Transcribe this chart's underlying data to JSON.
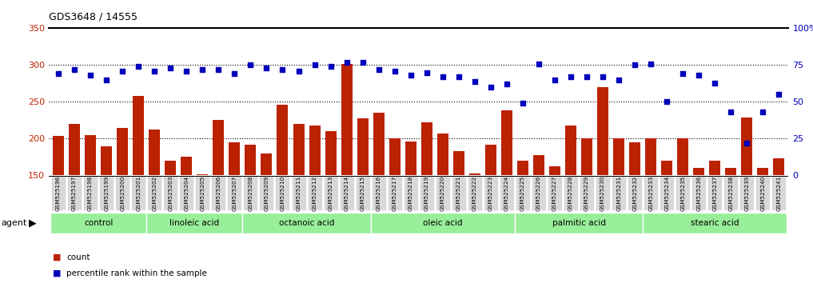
{
  "title": "GDS3648 / 14555",
  "samples": [
    "GSM525196",
    "GSM525197",
    "GSM525198",
    "GSM525199",
    "GSM525200",
    "GSM525201",
    "GSM525202",
    "GSM525203",
    "GSM525204",
    "GSM525205",
    "GSM525206",
    "GSM525207",
    "GSM525208",
    "GSM525209",
    "GSM525210",
    "GSM525211",
    "GSM525212",
    "GSM525213",
    "GSM525214",
    "GSM525215",
    "GSM525216",
    "GSM525217",
    "GSM525218",
    "GSM525219",
    "GSM525220",
    "GSM525221",
    "GSM525222",
    "GSM525223",
    "GSM525224",
    "GSM525225",
    "GSM525226",
    "GSM525227",
    "GSM525228",
    "GSM525229",
    "GSM525230",
    "GSM525231",
    "GSM525232",
    "GSM525233",
    "GSM525234",
    "GSM525235",
    "GSM525236",
    "GSM525237",
    "GSM525238",
    "GSM525239",
    "GSM525240",
    "GSM525241"
  ],
  "bar_values": [
    204,
    220,
    205,
    190,
    215,
    258,
    212,
    170,
    175,
    152,
    225,
    195,
    192,
    180,
    246,
    220,
    218,
    210,
    302,
    228,
    235,
    200,
    196,
    222,
    207,
    183,
    153,
    192,
    238,
    170,
    178,
    163,
    218,
    200,
    270,
    200,
    195,
    200,
    170,
    200,
    160,
    170,
    160,
    229,
    160,
    173
  ],
  "pct_values": [
    69,
    72,
    68,
    65,
    71,
    74,
    71,
    73,
    71,
    72,
    72,
    69,
    75,
    73,
    72,
    71,
    75,
    74,
    77,
    77,
    72,
    71,
    68,
    70,
    67,
    67,
    64,
    60,
    62,
    49,
    76,
    65,
    67,
    67,
    67,
    65,
    75,
    76,
    50,
    69,
    68,
    63,
    43,
    22,
    43,
    55
  ],
  "groups": [
    {
      "label": "control",
      "start": 0,
      "end": 6
    },
    {
      "label": "linoleic acid",
      "start": 6,
      "end": 12
    },
    {
      "label": "octanoic acid",
      "start": 12,
      "end": 20
    },
    {
      "label": "oleic acid",
      "start": 20,
      "end": 29
    },
    {
      "label": "palmitic acid",
      "start": 29,
      "end": 37
    },
    {
      "label": "stearic acid",
      "start": 37,
      "end": 46
    }
  ],
  "bar_color": "#bb2200",
  "dot_color": "#0000bb",
  "ylim_left": [
    150,
    350
  ],
  "ylim_right": [
    0,
    100
  ],
  "yticks_left": [
    150,
    200,
    250,
    300,
    350
  ],
  "yticks_right": [
    0,
    25,
    50,
    75,
    100
  ],
  "hlines": [
    200,
    250,
    300
  ],
  "group_band_color": "#99ee99",
  "group_band_color_alt": "#bbffbb",
  "tick_label_bg": "#d8d8d8"
}
